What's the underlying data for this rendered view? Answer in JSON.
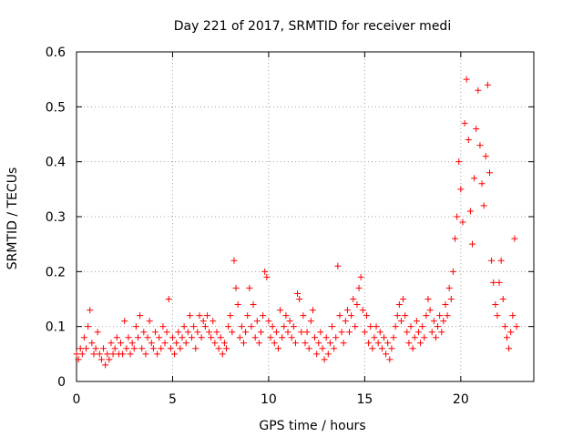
{
  "chart_data": {
    "type": "scatter",
    "title": "Day 221 of 2017, SRMTID for receiver medi",
    "xlabel": "GPS time / hours",
    "ylabel": "SRMTID / TECUs",
    "xlim": [
      0,
      23.8
    ],
    "ylim": [
      0,
      0.6
    ],
    "xticks": [
      0,
      5,
      10,
      15,
      20
    ],
    "xtick_labels": [
      "0",
      "5",
      "10",
      "15",
      "20"
    ],
    "yticks": [
      0,
      0.1,
      0.2,
      0.3,
      0.4,
      0.5,
      0.6
    ],
    "ytick_labels": [
      "0",
      "0.1",
      "0.2",
      "0.3",
      "0.4",
      "0.5",
      "0.6"
    ],
    "grid": true,
    "marker": "+",
    "color": "#ff0000",
    "series": [
      {
        "name": "SRMTID",
        "points": [
          [
            0.0,
            0.05
          ],
          [
            0.1,
            0.04
          ],
          [
            0.2,
            0.06
          ],
          [
            0.3,
            0.05
          ],
          [
            0.4,
            0.08
          ],
          [
            0.5,
            0.06
          ],
          [
            0.6,
            0.1
          ],
          [
            0.7,
            0.13
          ],
          [
            0.8,
            0.07
          ],
          [
            0.9,
            0.05
          ],
          [
            1.0,
            0.06
          ],
          [
            1.1,
            0.09
          ],
          [
            1.2,
            0.05
          ],
          [
            1.3,
            0.04
          ],
          [
            1.4,
            0.06
          ],
          [
            1.5,
            0.03
          ],
          [
            1.6,
            0.05
          ],
          [
            1.7,
            0.04
          ],
          [
            1.8,
            0.07
          ],
          [
            1.9,
            0.05
          ],
          [
            2.0,
            0.06
          ],
          [
            2.1,
            0.08
          ],
          [
            2.2,
            0.05
          ],
          [
            2.3,
            0.07
          ],
          [
            2.4,
            0.05
          ],
          [
            2.5,
            0.11
          ],
          [
            2.6,
            0.06
          ],
          [
            2.7,
            0.08
          ],
          [
            2.8,
            0.05
          ],
          [
            2.9,
            0.07
          ],
          [
            3.0,
            0.06
          ],
          [
            3.1,
            0.1
          ],
          [
            3.2,
            0.08
          ],
          [
            3.3,
            0.12
          ],
          [
            3.4,
            0.06
          ],
          [
            3.5,
            0.09
          ],
          [
            3.6,
            0.05
          ],
          [
            3.7,
            0.08
          ],
          [
            3.8,
            0.11
          ],
          [
            3.9,
            0.07
          ],
          [
            4.0,
            0.06
          ],
          [
            4.1,
            0.09
          ],
          [
            4.2,
            0.05
          ],
          [
            4.3,
            0.08
          ],
          [
            4.4,
            0.06
          ],
          [
            4.5,
            0.1
          ],
          [
            4.6,
            0.07
          ],
          [
            4.7,
            0.09
          ],
          [
            4.8,
            0.15
          ],
          [
            4.9,
            0.06
          ],
          [
            5.0,
            0.08
          ],
          [
            5.1,
            0.05
          ],
          [
            5.2,
            0.07
          ],
          [
            5.3,
            0.09
          ],
          [
            5.4,
            0.06
          ],
          [
            5.5,
            0.08
          ],
          [
            5.6,
            0.1
          ],
          [
            5.7,
            0.07
          ],
          [
            5.8,
            0.09
          ],
          [
            5.9,
            0.12
          ],
          [
            6.0,
            0.08
          ],
          [
            6.1,
            0.1
          ],
          [
            6.2,
            0.06
          ],
          [
            6.3,
            0.09
          ],
          [
            6.4,
            0.12
          ],
          [
            6.5,
            0.08
          ],
          [
            6.6,
            0.11
          ],
          [
            6.7,
            0.1
          ],
          [
            6.8,
            0.12
          ],
          [
            6.9,
            0.09
          ],
          [
            7.0,
            0.08
          ],
          [
            7.1,
            0.11
          ],
          [
            7.2,
            0.07
          ],
          [
            7.3,
            0.09
          ],
          [
            7.4,
            0.06
          ],
          [
            7.5,
            0.08
          ],
          [
            7.6,
            0.05
          ],
          [
            7.7,
            0.07
          ],
          [
            7.8,
            0.06
          ],
          [
            7.9,
            0.1
          ],
          [
            8.0,
            0.12
          ],
          [
            8.1,
            0.09
          ],
          [
            8.2,
            0.22
          ],
          [
            8.3,
            0.17
          ],
          [
            8.4,
            0.14
          ],
          [
            8.5,
            0.08
          ],
          [
            8.6,
            0.1
          ],
          [
            8.7,
            0.07
          ],
          [
            8.8,
            0.09
          ],
          [
            8.9,
            0.12
          ],
          [
            9.0,
            0.17
          ],
          [
            9.1,
            0.1
          ],
          [
            9.2,
            0.14
          ],
          [
            9.3,
            0.08
          ],
          [
            9.4,
            0.11
          ],
          [
            9.5,
            0.07
          ],
          [
            9.6,
            0.09
          ],
          [
            9.7,
            0.12
          ],
          [
            9.8,
            0.2
          ],
          [
            9.9,
            0.19
          ],
          [
            10.0,
            0.11
          ],
          [
            10.1,
            0.08
          ],
          [
            10.2,
            0.1
          ],
          [
            10.3,
            0.07
          ],
          [
            10.4,
            0.09
          ],
          [
            10.5,
            0.06
          ],
          [
            10.6,
            0.13
          ],
          [
            10.7,
            0.08
          ],
          [
            10.8,
            0.1
          ],
          [
            10.9,
            0.12
          ],
          [
            11.0,
            0.09
          ],
          [
            11.1,
            0.11
          ],
          [
            11.2,
            0.08
          ],
          [
            11.3,
            0.1
          ],
          [
            11.4,
            0.07
          ],
          [
            11.5,
            0.16
          ],
          [
            11.6,
            0.15
          ],
          [
            11.7,
            0.09
          ],
          [
            11.8,
            0.12
          ],
          [
            11.9,
            0.07
          ],
          [
            12.0,
            0.09
          ],
          [
            12.1,
            0.06
          ],
          [
            12.2,
            0.11
          ],
          [
            12.3,
            0.13
          ],
          [
            12.4,
            0.08
          ],
          [
            12.5,
            0.05
          ],
          [
            12.6,
            0.07
          ],
          [
            12.7,
            0.09
          ],
          [
            12.8,
            0.06
          ],
          [
            12.9,
            0.04
          ],
          [
            13.0,
            0.08
          ],
          [
            13.1,
            0.05
          ],
          [
            13.2,
            0.07
          ],
          [
            13.3,
            0.1
          ],
          [
            13.4,
            0.06
          ],
          [
            13.5,
            0.08
          ],
          [
            13.6,
            0.21
          ],
          [
            13.7,
            0.12
          ],
          [
            13.8,
            0.09
          ],
          [
            13.9,
            0.07
          ],
          [
            14.0,
            0.11
          ],
          [
            14.1,
            0.13
          ],
          [
            14.2,
            0.09
          ],
          [
            14.3,
            0.12
          ],
          [
            14.4,
            0.15
          ],
          [
            14.5,
            0.1
          ],
          [
            14.6,
            0.14
          ],
          [
            14.7,
            0.17
          ],
          [
            14.8,
            0.19
          ],
          [
            14.9,
            0.13
          ],
          [
            15.0,
            0.09
          ],
          [
            15.1,
            0.12
          ],
          [
            15.2,
            0.07
          ],
          [
            15.3,
            0.1
          ],
          [
            15.4,
            0.06
          ],
          [
            15.5,
            0.08
          ],
          [
            15.6,
            0.1
          ],
          [
            15.7,
            0.07
          ],
          [
            15.8,
            0.09
          ],
          [
            15.9,
            0.06
          ],
          [
            16.0,
            0.08
          ],
          [
            16.1,
            0.05
          ],
          [
            16.2,
            0.07
          ],
          [
            16.3,
            0.04
          ],
          [
            16.4,
            0.06
          ],
          [
            16.5,
            0.08
          ],
          [
            16.6,
            0.1
          ],
          [
            16.7,
            0.12
          ],
          [
            16.8,
            0.14
          ],
          [
            16.9,
            0.11
          ],
          [
            17.0,
            0.15
          ],
          [
            17.1,
            0.12
          ],
          [
            17.2,
            0.09
          ],
          [
            17.3,
            0.07
          ],
          [
            17.4,
            0.1
          ],
          [
            17.5,
            0.06
          ],
          [
            17.6,
            0.08
          ],
          [
            17.7,
            0.11
          ],
          [
            17.8,
            0.09
          ],
          [
            17.9,
            0.07
          ],
          [
            18.0,
            0.1
          ],
          [
            18.1,
            0.08
          ],
          [
            18.2,
            0.12
          ],
          [
            18.3,
            0.15
          ],
          [
            18.4,
            0.13
          ],
          [
            18.5,
            0.09
          ],
          [
            18.6,
            0.11
          ],
          [
            18.7,
            0.08
          ],
          [
            18.8,
            0.1
          ],
          [
            18.9,
            0.12
          ],
          [
            19.0,
            0.09
          ],
          [
            19.1,
            0.11
          ],
          [
            19.2,
            0.14
          ],
          [
            19.3,
            0.12
          ],
          [
            19.4,
            0.17
          ],
          [
            19.5,
            0.15
          ],
          [
            19.6,
            0.2
          ],
          [
            19.7,
            0.26
          ],
          [
            19.8,
            0.3
          ],
          [
            19.9,
            0.4
          ],
          [
            20.0,
            0.35
          ],
          [
            20.1,
            0.29
          ],
          [
            20.2,
            0.47
          ],
          [
            20.3,
            0.55
          ],
          [
            20.4,
            0.44
          ],
          [
            20.5,
            0.31
          ],
          [
            20.6,
            0.25
          ],
          [
            20.7,
            0.37
          ],
          [
            20.8,
            0.46
          ],
          [
            20.9,
            0.53
          ],
          [
            21.0,
            0.43
          ],
          [
            21.1,
            0.36
          ],
          [
            21.2,
            0.32
          ],
          [
            21.3,
            0.41
          ],
          [
            21.4,
            0.54
          ],
          [
            21.5,
            0.38
          ],
          [
            21.6,
            0.22
          ],
          [
            21.7,
            0.18
          ],
          [
            21.8,
            0.14
          ],
          [
            21.9,
            0.12
          ],
          [
            22.0,
            0.18
          ],
          [
            22.1,
            0.22
          ],
          [
            22.2,
            0.15
          ],
          [
            22.3,
            0.1
          ],
          [
            22.4,
            0.08
          ],
          [
            22.5,
            0.06
          ],
          [
            22.6,
            0.09
          ],
          [
            22.7,
            0.12
          ],
          [
            22.8,
            0.26
          ],
          [
            22.9,
            0.1
          ]
        ]
      }
    ]
  }
}
